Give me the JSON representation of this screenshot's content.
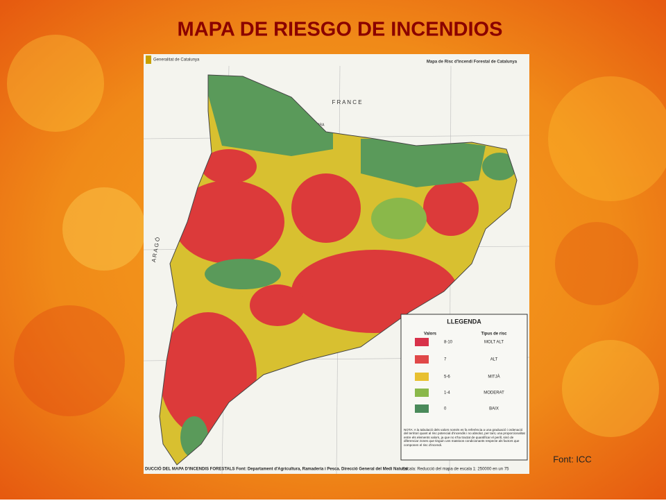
{
  "title": "MAPA DE RIESGO DE INCENDIOS",
  "source": "Font: ICC",
  "map": {
    "institution": "Generalitat de Catalunya",
    "map_title": "Mapa de Risc d'Incendi Forestal de Catalunya",
    "places": [
      "F R A N C E",
      "ANDORRA",
      "A R A G Ó"
    ],
    "legend": {
      "title": "LLEGENDA",
      "headers": [
        "Valors",
        "Tipus de risc"
      ],
      "rows": [
        [
          "8-10",
          "MOLT ALT"
        ],
        [
          "7",
          "ALT"
        ],
        [
          "5-6",
          "MITJÀ"
        ],
        [
          "1-4",
          "MODERAT"
        ],
        [
          "0",
          "BAIX"
        ]
      ],
      "note": "NOTA: A la tabulació dels valors només es fa referència a una graduació i ordenació del territori quant al risc potencial d'incendis i no absolut, per tant, una proporcionalitat entre els elements valors, ja que no s'ha tractat de quantificar el perill, sinó de diferenciar zones que tinguin uns mateixos condicionants respecte als factors que componen el risc d'incendi."
    },
    "footer": "DUCCIÓ DEL MAPA D'INCENDIS FORESTALS  Font: Departament d'Agricultura, Ramaderia i Pesca. Direcció General del Medi Natural",
    "scale": "Escala: Reducció del mapa de escala 1: 250000 en un 75"
  }
}
